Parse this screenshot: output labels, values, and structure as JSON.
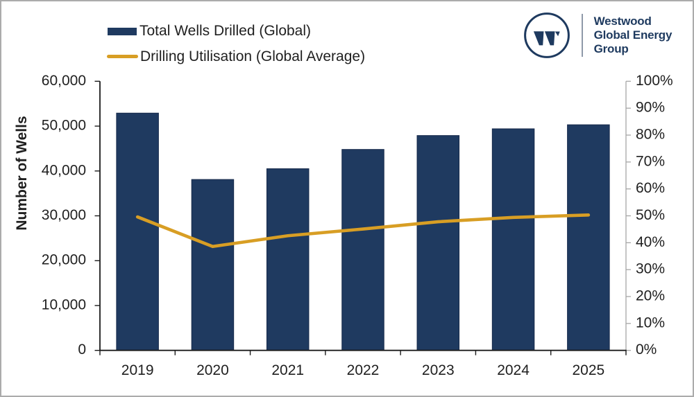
{
  "frame": {
    "border_color": "#ababab",
    "background": "#ffffff"
  },
  "legend": {
    "items": [
      {
        "label": "Total Wells Drilled (Global)",
        "swatch": "bar",
        "color": "#1f3a60"
      },
      {
        "label": "Drilling Utilisation (Global Average)",
        "swatch": "line",
        "color": "#d89e24"
      }
    ]
  },
  "logo": {
    "mark": "westwood-w-circle-icon",
    "color": "#1e3a5f",
    "line1": "Westwood",
    "line2": "Global Energy",
    "line3": "Group"
  },
  "chart_data": {
    "type": "combo-bar-line",
    "categories": [
      "2019",
      "2020",
      "2021",
      "2022",
      "2023",
      "2024",
      "2025"
    ],
    "series": [
      {
        "name": "Total Wells Drilled (Global)",
        "type": "bar",
        "axis": "left",
        "color": "#1f3a60",
        "values": [
          52900,
          38100,
          40500,
          44800,
          47900,
          49400,
          50300
        ]
      },
      {
        "name": "Drilling Utilisation (Global Average)",
        "type": "line",
        "axis": "right",
        "color": "#d89e24",
        "values": [
          49.6,
          38.6,
          42.6,
          45.1,
          47.8,
          49.4,
          50.3
        ]
      }
    ],
    "left_axis": {
      "title": "Number of Wells",
      "min": 0,
      "max": 60000,
      "step": 10000,
      "tick_labels": [
        "0",
        "10,000",
        "20,000",
        "30,000",
        "40,000",
        "50,000",
        "60,000"
      ]
    },
    "right_axis": {
      "title": "",
      "min": 0,
      "max": 100,
      "step": 10,
      "tick_labels": [
        "0%",
        "10%",
        "20%",
        "30%",
        "40%",
        "50%",
        "60%",
        "70%",
        "80%",
        "90%",
        "100%"
      ]
    },
    "grid": false,
    "legend_position": "top-left"
  }
}
